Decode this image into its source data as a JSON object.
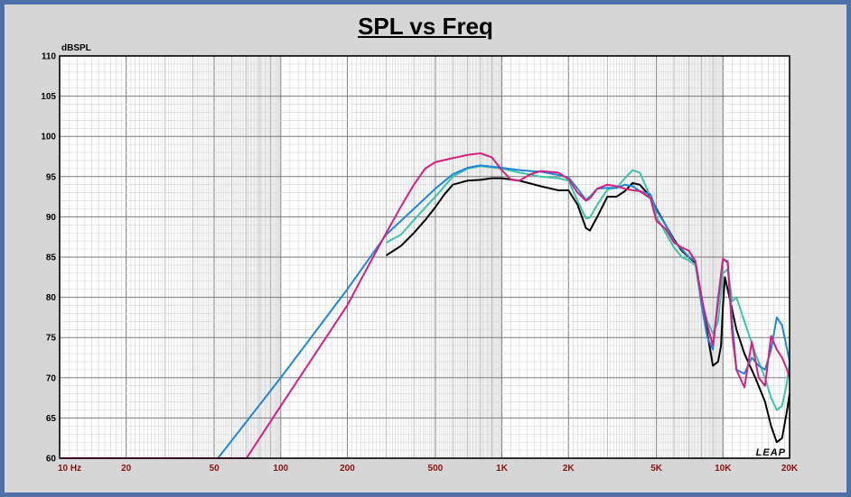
{
  "chart_data": {
    "type": "line",
    "title": "SPL vs Freq",
    "ylabel": "dBSPL",
    "xscale": "log",
    "xlim": [
      10,
      20000
    ],
    "ylim": [
      60,
      110
    ],
    "grid": true,
    "watermark": "LEAP",
    "y_ticks": [
      "110",
      "105",
      "100",
      "95",
      "90",
      "85",
      "80",
      "75",
      "70",
      "65",
      "60"
    ],
    "x_ticks": [
      {
        "v": 10,
        "label": "10 Hz"
      },
      {
        "v": 20,
        "label": "20"
      },
      {
        "v": 50,
        "label": "50"
      },
      {
        "v": 100,
        "label": "100"
      },
      {
        "v": 200,
        "label": "200"
      },
      {
        "v": 500,
        "label": "500"
      },
      {
        "v": 1000,
        "label": "1K"
      },
      {
        "v": 2000,
        "label": "2K"
      },
      {
        "v": 5000,
        "label": "5K"
      },
      {
        "v": 10000,
        "label": "10K"
      },
      {
        "v": 20000,
        "label": "20K"
      }
    ],
    "series": [
      {
        "color": "#000000",
        "points": [
          [
            300,
            85.2
          ],
          [
            350,
            86.4
          ],
          [
            400,
            88.0
          ],
          [
            450,
            89.6
          ],
          [
            500,
            91.2
          ],
          [
            550,
            92.8
          ],
          [
            600,
            94.0
          ],
          [
            700,
            94.5
          ],
          [
            800,
            94.6
          ],
          [
            900,
            94.8
          ],
          [
            1000,
            94.8
          ],
          [
            1200,
            94.5
          ],
          [
            1500,
            93.8
          ],
          [
            1800,
            93.3
          ],
          [
            2000,
            93.3
          ],
          [
            2200,
            91.5
          ],
          [
            2400,
            88.6
          ],
          [
            2500,
            88.3
          ],
          [
            2700,
            90.0
          ],
          [
            3000,
            92.5
          ],
          [
            3300,
            92.5
          ],
          [
            3600,
            93.2
          ],
          [
            3900,
            94.2
          ],
          [
            4200,
            94.0
          ],
          [
            4700,
            92.5
          ],
          [
            5000,
            91.0
          ],
          [
            5500,
            89.0
          ],
          [
            6000,
            87.2
          ],
          [
            6500,
            85.8
          ],
          [
            7000,
            85.0
          ],
          [
            7500,
            84.3
          ],
          [
            8000,
            80.0
          ],
          [
            8500,
            75.5
          ],
          [
            9000,
            71.5
          ],
          [
            9500,
            72.0
          ],
          [
            9800,
            74.0
          ],
          [
            10000,
            79.0
          ],
          [
            10200,
            82.5
          ],
          [
            10700,
            80.0
          ],
          [
            11500,
            76.0
          ],
          [
            12500,
            73.0
          ],
          [
            14000,
            70.0
          ],
          [
            15500,
            67.0
          ],
          [
            16500,
            64.0
          ],
          [
            17500,
            62.0
          ],
          [
            18500,
            62.5
          ],
          [
            19500,
            66.0
          ],
          [
            20000,
            68.0
          ]
        ]
      },
      {
        "color": "#3bc4a8",
        "points": [
          [
            300,
            86.8
          ],
          [
            350,
            87.8
          ],
          [
            400,
            89.6
          ],
          [
            500,
            92.5
          ],
          [
            600,
            95.0
          ],
          [
            700,
            96.0
          ],
          [
            800,
            96.3
          ],
          [
            1000,
            96.0
          ],
          [
            1200,
            95.5
          ],
          [
            1500,
            95.0
          ],
          [
            1800,
            94.8
          ],
          [
            2000,
            94.5
          ],
          [
            2200,
            92.0
          ],
          [
            2400,
            89.8
          ],
          [
            2500,
            89.9
          ],
          [
            2700,
            91.5
          ],
          [
            3000,
            93.4
          ],
          [
            3300,
            93.6
          ],
          [
            3600,
            94.8
          ],
          [
            3900,
            95.8
          ],
          [
            4200,
            95.5
          ],
          [
            4700,
            92.5
          ],
          [
            5000,
            90.0
          ],
          [
            5500,
            88.0
          ],
          [
            6000,
            86.2
          ],
          [
            6500,
            85.0
          ],
          [
            7000,
            84.6
          ],
          [
            7500,
            84.0
          ],
          [
            8000,
            79.5
          ],
          [
            8500,
            77.0
          ],
          [
            9000,
            75.5
          ],
          [
            9500,
            77.0
          ],
          [
            10000,
            83.0
          ],
          [
            10500,
            83.5
          ],
          [
            11000,
            79.5
          ],
          [
            11500,
            80.0
          ],
          [
            12500,
            77.0
          ],
          [
            14000,
            73.0
          ],
          [
            15500,
            70.0
          ],
          [
            16500,
            67.5
          ],
          [
            17500,
            66.0
          ],
          [
            18500,
            66.5
          ],
          [
            19500,
            69.5
          ],
          [
            20000,
            72.0
          ]
        ]
      },
      {
        "color": "#1f86d6",
        "points": [
          [
            10,
            60
          ],
          [
            52,
            60
          ],
          [
            100,
            70.0
          ],
          [
            200,
            81.0
          ],
          [
            300,
            87.8
          ],
          [
            400,
            91.0
          ],
          [
            500,
            93.5
          ],
          [
            600,
            95.3
          ],
          [
            700,
            96.1
          ],
          [
            800,
            96.4
          ],
          [
            1000,
            96.1
          ],
          [
            1200,
            95.8
          ],
          [
            1500,
            95.6
          ],
          [
            1800,
            95.2
          ],
          [
            2000,
            94.9
          ],
          [
            2200,
            93.5
          ],
          [
            2400,
            92.1
          ],
          [
            2500,
            92.5
          ],
          [
            2700,
            93.5
          ],
          [
            3000,
            93.6
          ],
          [
            3300,
            93.6
          ],
          [
            3600,
            94.0
          ],
          [
            3900,
            93.8
          ],
          [
            4200,
            93.2
          ],
          [
            4700,
            92.8
          ],
          [
            5000,
            90.8
          ],
          [
            5500,
            89.0
          ],
          [
            6000,
            87.0
          ],
          [
            6500,
            86.0
          ],
          [
            7000,
            85.0
          ],
          [
            7500,
            84.5
          ],
          [
            8000,
            79.0
          ],
          [
            8500,
            75.0
          ],
          [
            9000,
            73.5
          ],
          [
            9500,
            80.0
          ],
          [
            10000,
            84.7
          ],
          [
            10500,
            84.5
          ],
          [
            11000,
            77.0
          ],
          [
            11500,
            71.0
          ],
          [
            12500,
            70.5
          ],
          [
            13500,
            72.5
          ],
          [
            14500,
            71.5
          ],
          [
            15500,
            71.0
          ],
          [
            16500,
            73.5
          ],
          [
            17500,
            77.5
          ],
          [
            18500,
            76.5
          ],
          [
            19500,
            73.5
          ],
          [
            20000,
            72.0
          ]
        ]
      },
      {
        "color": "#d51f7e",
        "points": [
          [
            10,
            60
          ],
          [
            70,
            60
          ],
          [
            100,
            66.5
          ],
          [
            200,
            79.0
          ],
          [
            250,
            84.0
          ],
          [
            300,
            88.0
          ],
          [
            350,
            91.3
          ],
          [
            400,
            94.0
          ],
          [
            450,
            96.0
          ],
          [
            500,
            96.8
          ],
          [
            600,
            97.3
          ],
          [
            700,
            97.7
          ],
          [
            800,
            97.9
          ],
          [
            900,
            97.4
          ],
          [
            1000,
            95.8
          ],
          [
            1100,
            94.6
          ],
          [
            1200,
            94.5
          ],
          [
            1350,
            95.3
          ],
          [
            1500,
            95.7
          ],
          [
            1800,
            95.5
          ],
          [
            2000,
            94.7
          ],
          [
            2200,
            93.0
          ],
          [
            2400,
            92.0
          ],
          [
            2500,
            92.3
          ],
          [
            2700,
            93.5
          ],
          [
            3000,
            94.0
          ],
          [
            3300,
            93.8
          ],
          [
            3600,
            93.5
          ],
          [
            3900,
            93.3
          ],
          [
            4200,
            93.2
          ],
          [
            4700,
            92.3
          ],
          [
            5000,
            89.5
          ],
          [
            5500,
            88.5
          ],
          [
            6000,
            86.8
          ],
          [
            6500,
            86.2
          ],
          [
            7000,
            85.8
          ],
          [
            7500,
            84.5
          ],
          [
            8000,
            80.0
          ],
          [
            8500,
            76.5
          ],
          [
            9000,
            74.0
          ],
          [
            9500,
            79.5
          ],
          [
            10000,
            84.8
          ],
          [
            10500,
            84.3
          ],
          [
            11000,
            75.5
          ],
          [
            11500,
            71.0
          ],
          [
            12500,
            68.8
          ],
          [
            13500,
            74.5
          ],
          [
            14500,
            70.0
          ],
          [
            15500,
            69.0
          ],
          [
            16500,
            75.2
          ],
          [
            17500,
            73.5
          ],
          [
            18500,
            72.5
          ],
          [
            19500,
            71.0
          ],
          [
            20000,
            70.0
          ]
        ]
      }
    ]
  }
}
